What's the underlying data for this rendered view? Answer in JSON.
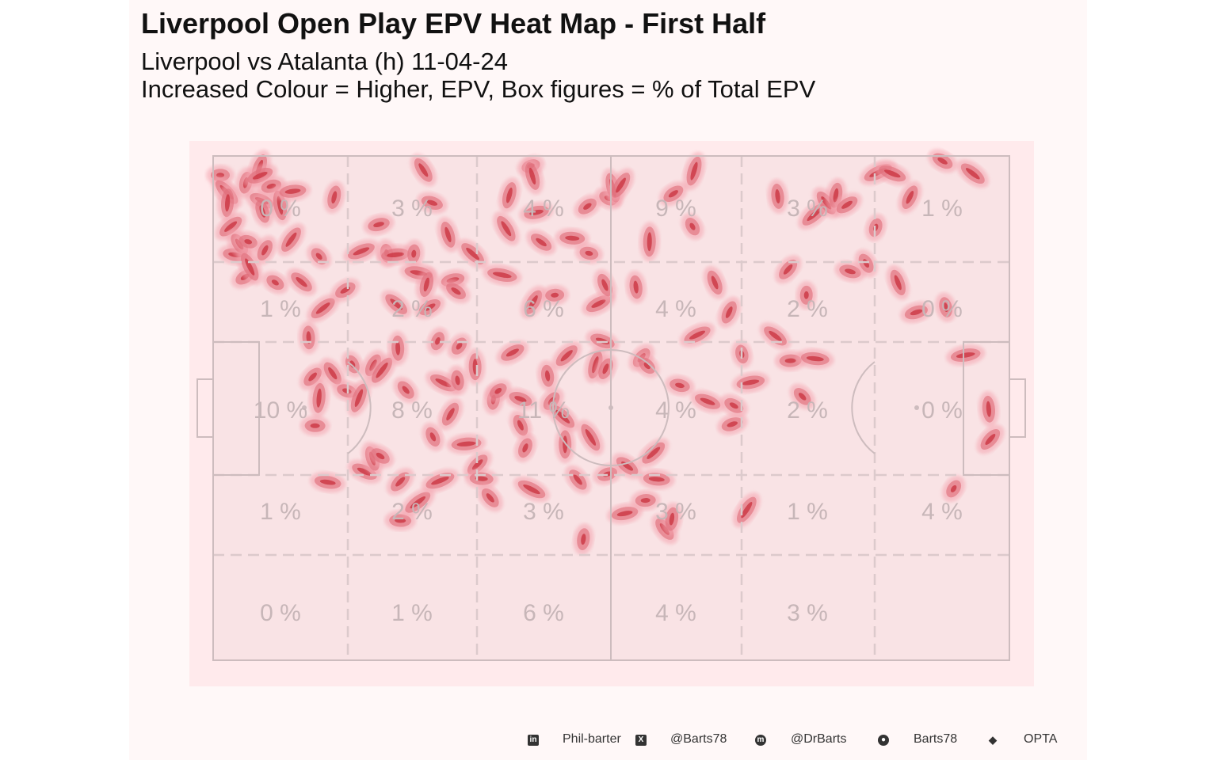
{
  "title": "Liverpool Open Play EPV Heat Map - First Half",
  "subtitle_line1": "Liverpool vs Atalanta (h) 11-04-24",
  "subtitle_line2": "Increased Colour = Higher, EPV, Box figures = % of Total EPV",
  "footer": {
    "linkedin": "Phil-barter",
    "x": "@Barts78",
    "mastodon": "@DrBarts",
    "github": "Barts78",
    "source": "OPTA"
  },
  "colors": {
    "panel": "#fff8f8",
    "pitch": "#ffeaec",
    "zone_fill": "#f9e3e5",
    "lines": "#cdbcbe",
    "heat_low": "#f4a3ae",
    "heat_high": "#c9303c",
    "percent_text": "#c7b6b8"
  },
  "chart_data": {
    "type": "heatmap",
    "zone_columns": 6,
    "zone_rows": 5,
    "zone_percent_grid": [
      [
        "0 %",
        "3 %",
        "4 %",
        "9 %",
        "3 %",
        "1 %"
      ],
      [
        "1 %",
        "2 %",
        "6 %",
        "4 %",
        "2 %",
        "0 %"
      ],
      [
        "10 %",
        "8 %",
        "11 %",
        "4 %",
        "2 %",
        "0 %"
      ],
      [
        "1 %",
        "2 %",
        "3 %",
        "3 %",
        "1 %",
        "4 %"
      ],
      [
        "0 %",
        "1 %",
        "6 %",
        "4 %",
        "3 %",
        ""
      ]
    ],
    "hotspots": [
      {
        "x": 0.9,
        "y": 3.8,
        "v": 0.9
      },
      {
        "x": 1.7,
        "y": 7.2,
        "v": 1.0
      },
      {
        "x": 1.8,
        "y": 9.3,
        "v": 1.0
      },
      {
        "x": 2.2,
        "y": 14.0,
        "v": 1.0
      },
      {
        "x": 2.8,
        "y": 19.6,
        "v": 0.9
      },
      {
        "x": 3.3,
        "y": 17.5,
        "v": 1.0
      },
      {
        "x": 4.1,
        "y": 5.3,
        "v": 1.0
      },
      {
        "x": 4.0,
        "y": 24.0,
        "v": 0.8
      },
      {
        "x": 4.4,
        "y": 17.0,
        "v": 1.0
      },
      {
        "x": 4.6,
        "y": 22.0,
        "v": 1.0
      },
      {
        "x": 5.8,
        "y": 2.4,
        "v": 1.0
      },
      {
        "x": 5.9,
        "y": 3.9,
        "v": 1.0
      },
      {
        "x": 6.1,
        "y": 8.9,
        "v": 1.0
      },
      {
        "x": 6.2,
        "y": 11.0,
        "v": 1.0
      },
      {
        "x": 6.5,
        "y": 18.7,
        "v": 1.0
      },
      {
        "x": 7.3,
        "y": 6.0,
        "v": 1.0
      },
      {
        "x": 7.8,
        "y": 25.1,
        "v": 1.0
      },
      {
        "x": 8.4,
        "y": 9.8,
        "v": 1.0
      },
      {
        "x": 9.8,
        "y": 16.6,
        "v": 1.0
      },
      {
        "x": 10.0,
        "y": 7.0,
        "v": 1.0
      },
      {
        "x": 11.1,
        "y": 25.0,
        "v": 1.0
      },
      {
        "x": 12.0,
        "y": 36.0,
        "v": 1.0
      },
      {
        "x": 12.5,
        "y": 43.8,
        "v": 1.0
      },
      {
        "x": 12.8,
        "y": 53.5,
        "v": 1.0
      },
      {
        "x": 13.3,
        "y": 19.9,
        "v": 1.0
      },
      {
        "x": 13.3,
        "y": 48.0,
        "v": 1.0
      },
      {
        "x": 13.8,
        "y": 30.2,
        "v": 1.0
      },
      {
        "x": 14.4,
        "y": 64.7,
        "v": 1.0
      },
      {
        "x": 15.0,
        "y": 43.1,
        "v": 1.0
      },
      {
        "x": 15.2,
        "y": 8.2,
        "v": 1.0
      },
      {
        "x": 16.6,
        "y": 26.6,
        "v": 1.0
      },
      {
        "x": 16.8,
        "y": 46.6,
        "v": 1.0
      },
      {
        "x": 17.5,
        "y": 41.3,
        "v": 1.0
      },
      {
        "x": 18.3,
        "y": 48.0,
        "v": 1.0
      },
      {
        "x": 18.6,
        "y": 18.9,
        "v": 1.0
      },
      {
        "x": 19.0,
        "y": 62.6,
        "v": 1.0
      },
      {
        "x": 20.0,
        "y": 60.0,
        "v": 1.0
      },
      {
        "x": 20.1,
        "y": 41.5,
        "v": 1.0
      },
      {
        "x": 20.8,
        "y": 13.6,
        "v": 1.0
      },
      {
        "x": 21.0,
        "y": 59.5,
        "v": 1.0
      },
      {
        "x": 21.8,
        "y": 19.3,
        "v": 1.0
      },
      {
        "x": 21.2,
        "y": 42.5,
        "v": 1.0
      },
      {
        "x": 22.9,
        "y": 19.6,
        "v": 1.0
      },
      {
        "x": 23.0,
        "y": 29.4,
        "v": 1.0
      },
      {
        "x": 23.2,
        "y": 38.1,
        "v": 1.0
      },
      {
        "x": 23.5,
        "y": 64.6,
        "v": 1.0
      },
      {
        "x": 23.5,
        "y": 72.3,
        "v": 1.0
      },
      {
        "x": 24.2,
        "y": 46.4,
        "v": 1.0
      },
      {
        "x": 25.2,
        "y": 19.4,
        "v": 1.0
      },
      {
        "x": 25.7,
        "y": 68.7,
        "v": 1.0
      },
      {
        "x": 25.8,
        "y": 23.2,
        "v": 1.0
      },
      {
        "x": 26.4,
        "y": 2.8,
        "v": 1.0
      },
      {
        "x": 26.8,
        "y": 25.5,
        "v": 1.0
      },
      {
        "x": 27.2,
        "y": 30.0,
        "v": 1.0
      },
      {
        "x": 27.5,
        "y": 9.3,
        "v": 1.0
      },
      {
        "x": 27.6,
        "y": 55.7,
        "v": 1.0
      },
      {
        "x": 28.2,
        "y": 36.7,
        "v": 1.0
      },
      {
        "x": 28.5,
        "y": 64.4,
        "v": 1.0
      },
      {
        "x": 28.9,
        "y": 45.0,
        "v": 1.0
      },
      {
        "x": 29.5,
        "y": 15.6,
        "v": 1.0
      },
      {
        "x": 29.8,
        "y": 51.2,
        "v": 1.0
      },
      {
        "x": 30.1,
        "y": 24.6,
        "v": 1.0
      },
      {
        "x": 30.5,
        "y": 26.8,
        "v": 1.0
      },
      {
        "x": 30.7,
        "y": 44.5,
        "v": 1.0
      },
      {
        "x": 30.9,
        "y": 37.7,
        "v": 1.0
      },
      {
        "x": 31.8,
        "y": 57.1,
        "v": 1.0
      },
      {
        "x": 32.6,
        "y": 19.4,
        "v": 1.0
      },
      {
        "x": 32.9,
        "y": 41.8,
        "v": 1.0
      },
      {
        "x": 33.2,
        "y": 61.2,
        "v": 1.0
      },
      {
        "x": 33.7,
        "y": 64.0,
        "v": 1.0
      },
      {
        "x": 34.8,
        "y": 67.8,
        "v": 1.0
      },
      {
        "x": 35.2,
        "y": 48.3,
        "v": 1.0
      },
      {
        "x": 35.8,
        "y": 46.6,
        "v": 1.0
      },
      {
        "x": 36.3,
        "y": 23.6,
        "v": 1.0
      },
      {
        "x": 36.8,
        "y": 14.4,
        "v": 1.0
      },
      {
        "x": 37.2,
        "y": 7.8,
        "v": 1.0
      },
      {
        "x": 37.6,
        "y": 39.0,
        "v": 1.0
      },
      {
        "x": 38.6,
        "y": 48.2,
        "v": 1.0
      },
      {
        "x": 38.6,
        "y": 53.4,
        "v": 1.0
      },
      {
        "x": 39.2,
        "y": 57.9,
        "v": 1.0
      },
      {
        "x": 39.9,
        "y": 2.0,
        "v": 1.0
      },
      {
        "x": 40.0,
        "y": 66.1,
        "v": 1.0
      },
      {
        "x": 40.1,
        "y": 4.0,
        "v": 1.0
      },
      {
        "x": 40.2,
        "y": 29.0,
        "v": 1.0
      },
      {
        "x": 40.6,
        "y": 11.2,
        "v": 1.0
      },
      {
        "x": 41.2,
        "y": 17.1,
        "v": 1.0
      },
      {
        "x": 42.0,
        "y": 43.6,
        "v": 1.0
      },
      {
        "x": 42.5,
        "y": 48.6,
        "v": 1.0
      },
      {
        "x": 42.9,
        "y": 27.6,
        "v": 1.0
      },
      {
        "x": 43.9,
        "y": 51.7,
        "v": 1.0
      },
      {
        "x": 44.2,
        "y": 57.2,
        "v": 1.0
      },
      {
        "x": 44.4,
        "y": 39.6,
        "v": 1.0
      },
      {
        "x": 45.1,
        "y": 16.3,
        "v": 1.0
      },
      {
        "x": 45.8,
        "y": 64.2,
        "v": 1.0
      },
      {
        "x": 46.5,
        "y": 76.0,
        "v": 1.0
      },
      {
        "x": 47.0,
        "y": 10.0,
        "v": 1.0
      },
      {
        "x": 47.2,
        "y": 19.3,
        "v": 1.0
      },
      {
        "x": 47.4,
        "y": 55.8,
        "v": 1.0
      },
      {
        "x": 48.0,
        "y": 41.4,
        "v": 1.0
      },
      {
        "x": 48.4,
        "y": 29.3,
        "v": 1.0
      },
      {
        "x": 48.9,
        "y": 36.7,
        "v": 1.0
      },
      {
        "x": 49.2,
        "y": 25.6,
        "v": 1.0
      },
      {
        "x": 49.3,
        "y": 42.2,
        "v": 1.0
      },
      {
        "x": 49.5,
        "y": 63.1,
        "v": 1.0
      },
      {
        "x": 49.6,
        "y": 8.4,
        "v": 1.0
      },
      {
        "x": 50.2,
        "y": 6.3,
        "v": 1.0
      },
      {
        "x": 51.2,
        "y": 5.8,
        "v": 1.0
      },
      {
        "x": 51.7,
        "y": 70.9,
        "v": 1.0
      },
      {
        "x": 52.0,
        "y": 61.5,
        "v": 1.0
      },
      {
        "x": 53.1,
        "y": 26.0,
        "v": 1.0
      },
      {
        "x": 53.8,
        "y": 40.0,
        "v": 1.0
      },
      {
        "x": 54.3,
        "y": 68.3,
        "v": 1.0
      },
      {
        "x": 54.5,
        "y": 41.6,
        "v": 1.0
      },
      {
        "x": 54.8,
        "y": 17.0,
        "v": 1.0
      },
      {
        "x": 55.3,
        "y": 58.9,
        "v": 1.0
      },
      {
        "x": 55.7,
        "y": 64.1,
        "v": 1.0
      },
      {
        "x": 56.7,
        "y": 74.0,
        "v": 1.0
      },
      {
        "x": 57.6,
        "y": 72.0,
        "v": 1.0
      },
      {
        "x": 57.8,
        "y": 7.5,
        "v": 1.0
      },
      {
        "x": 58.6,
        "y": 45.5,
        "v": 1.0
      },
      {
        "x": 60.2,
        "y": 14.0,
        "v": 1.0
      },
      {
        "x": 60.4,
        "y": 3.0,
        "v": 1.0
      },
      {
        "x": 60.8,
        "y": 35.5,
        "v": 1.0
      },
      {
        "x": 62.1,
        "y": 48.7,
        "v": 1.0
      },
      {
        "x": 63.0,
        "y": 25.1,
        "v": 1.0
      },
      {
        "x": 64.8,
        "y": 31.0,
        "v": 1.0
      },
      {
        "x": 65.2,
        "y": 53.2,
        "v": 1.0
      },
      {
        "x": 65.4,
        "y": 49.5,
        "v": 1.0
      },
      {
        "x": 66.4,
        "y": 39.3,
        "v": 1.0
      },
      {
        "x": 67.0,
        "y": 70.2,
        "v": 1.0
      },
      {
        "x": 67.5,
        "y": 44.9,
        "v": 1.0
      },
      {
        "x": 70.6,
        "y": 35.7,
        "v": 1.0
      },
      {
        "x": 70.9,
        "y": 8.0,
        "v": 1.0
      },
      {
        "x": 72.2,
        "y": 22.5,
        "v": 1.0
      },
      {
        "x": 72.5,
        "y": 40.6,
        "v": 1.0
      },
      {
        "x": 74.0,
        "y": 47.7,
        "v": 1.0
      },
      {
        "x": 74.5,
        "y": 27.6,
        "v": 1.0
      },
      {
        "x": 75.5,
        "y": 11.6,
        "v": 1.0
      },
      {
        "x": 75.6,
        "y": 40.2,
        "v": 1.0
      },
      {
        "x": 77.0,
        "y": 9.3,
        "v": 1.0
      },
      {
        "x": 78.2,
        "y": 7.8,
        "v": 1.0
      },
      {
        "x": 79.6,
        "y": 9.7,
        "v": 1.0
      },
      {
        "x": 80.0,
        "y": 22.9,
        "v": 1.0
      },
      {
        "x": 82.0,
        "y": 21.3,
        "v": 1.0
      },
      {
        "x": 83.2,
        "y": 14.2,
        "v": 1.0
      },
      {
        "x": 83.5,
        "y": 3.3,
        "v": 1.0
      },
      {
        "x": 85.3,
        "y": 3.5,
        "v": 1.0
      },
      {
        "x": 86.0,
        "y": 25.1,
        "v": 1.0
      },
      {
        "x": 87.5,
        "y": 8.2,
        "v": 1.0
      },
      {
        "x": 88.3,
        "y": 31.0,
        "v": 1.0
      },
      {
        "x": 91.6,
        "y": 1.0,
        "v": 1.0
      },
      {
        "x": 92.0,
        "y": 30.0,
        "v": 1.0
      },
      {
        "x": 93.0,
        "y": 66.0,
        "v": 1.0
      },
      {
        "x": 94.5,
        "y": 39.5,
        "v": 1.0
      },
      {
        "x": 95.4,
        "y": 3.5,
        "v": 1.0
      },
      {
        "x": 97.4,
        "y": 50.2,
        "v": 1.0
      },
      {
        "x": 97.6,
        "y": 56.2,
        "v": 1.0
      }
    ],
    "x_range": [
      0,
      100
    ],
    "y_range": [
      0,
      100
    ]
  }
}
